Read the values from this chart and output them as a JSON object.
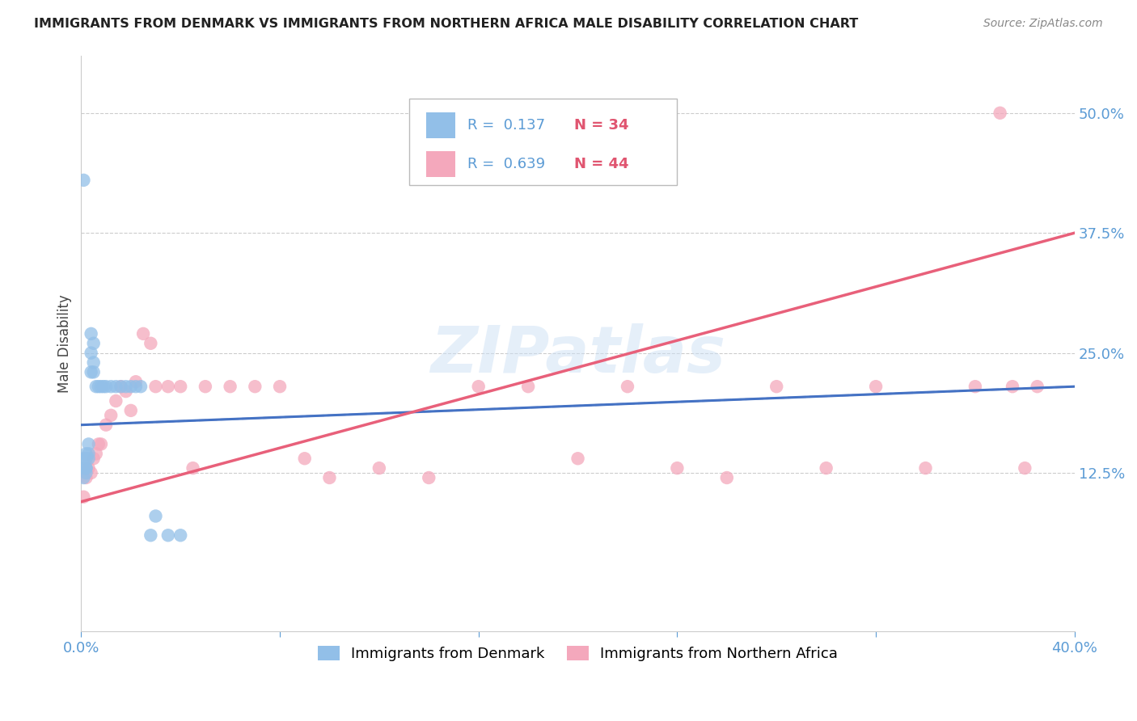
{
  "title": "IMMIGRANTS FROM DENMARK VS IMMIGRANTS FROM NORTHERN AFRICA MALE DISABILITY CORRELATION CHART",
  "source": "Source: ZipAtlas.com",
  "ylabel": "Male Disability",
  "xlim": [
    0.0,
    0.4
  ],
  "ylim": [
    -0.04,
    0.56
  ],
  "yticks": [
    0.125,
    0.25,
    0.375,
    0.5
  ],
  "ytick_labels": [
    "12.5%",
    "25.0%",
    "37.5%",
    "50.0%"
  ],
  "xticks": [
    0.0,
    0.08,
    0.16,
    0.24,
    0.32,
    0.4
  ],
  "xtick_labels_show": [
    "0.0%",
    "40.0%"
  ],
  "legend_R1": "0.137",
  "legend_N1": "34",
  "legend_R2": "0.639",
  "legend_N2": "44",
  "label1": "Immigrants from Denmark",
  "label2": "Immigrants from Northern Africa",
  "color1": "#92bfe8",
  "color2": "#f4a8bc",
  "trendline1_color": "#4472c4",
  "trendline2_color": "#e8607a",
  "trendline1_dash_color": "#aaaacc",
  "watermark_text": "ZIPatlas",
  "background_color": "#ffffff",
  "denmark_x": [
    0.001,
    0.001,
    0.001,
    0.001,
    0.002,
    0.002,
    0.002,
    0.002,
    0.002,
    0.003,
    0.003,
    0.003,
    0.004,
    0.004,
    0.004,
    0.005,
    0.005,
    0.005,
    0.006,
    0.007,
    0.008,
    0.009,
    0.01,
    0.012,
    0.014,
    0.016,
    0.018,
    0.02,
    0.022,
    0.024,
    0.028,
    0.03,
    0.035,
    0.04
  ],
  "denmark_y": [
    0.43,
    0.13,
    0.14,
    0.12,
    0.13,
    0.14,
    0.145,
    0.13,
    0.125,
    0.145,
    0.155,
    0.14,
    0.27,
    0.25,
    0.23,
    0.26,
    0.24,
    0.23,
    0.215,
    0.215,
    0.215,
    0.215,
    0.215,
    0.215,
    0.215,
    0.215,
    0.215,
    0.215,
    0.215,
    0.215,
    0.06,
    0.08,
    0.06,
    0.06
  ],
  "n_africa_x": [
    0.001,
    0.002,
    0.003,
    0.004,
    0.005,
    0.006,
    0.007,
    0.008,
    0.01,
    0.012,
    0.014,
    0.016,
    0.018,
    0.02,
    0.022,
    0.025,
    0.028,
    0.03,
    0.035,
    0.04,
    0.045,
    0.05,
    0.06,
    0.07,
    0.08,
    0.09,
    0.1,
    0.12,
    0.14,
    0.16,
    0.18,
    0.2,
    0.22,
    0.24,
    0.26,
    0.28,
    0.3,
    0.32,
    0.34,
    0.36,
    0.37,
    0.375,
    0.38,
    0.385
  ],
  "n_africa_y": [
    0.1,
    0.12,
    0.13,
    0.125,
    0.14,
    0.145,
    0.155,
    0.155,
    0.175,
    0.185,
    0.2,
    0.215,
    0.21,
    0.19,
    0.22,
    0.27,
    0.26,
    0.215,
    0.215,
    0.215,
    0.13,
    0.215,
    0.215,
    0.215,
    0.215,
    0.14,
    0.12,
    0.13,
    0.12,
    0.215,
    0.215,
    0.14,
    0.215,
    0.13,
    0.12,
    0.215,
    0.13,
    0.215,
    0.13,
    0.215,
    0.5,
    0.215,
    0.13,
    0.215
  ],
  "trendline1_x0": 0.0,
  "trendline1_y0": 0.175,
  "trendline1_x1": 0.4,
  "trendline1_y1": 0.215,
  "trendline2_x0": 0.0,
  "trendline2_y0": 0.095,
  "trendline2_x1": 0.4,
  "trendline2_y1": 0.375
}
